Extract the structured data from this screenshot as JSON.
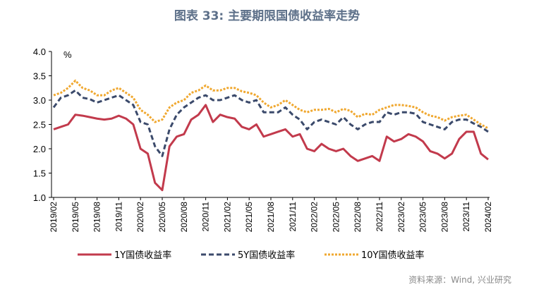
{
  "title": "图表 33: 主要期限国债收益率走势",
  "source": "资料来源：Wind, 兴业研究",
  "chart_data": {
    "type": "line",
    "ylabel": "%",
    "ylim": [
      1.0,
      4.0
    ],
    "yticks": [
      "4.0",
      "3.5",
      "3.0",
      "2.5",
      "2.0",
      "1.5",
      "1.0"
    ],
    "xticks": [
      "2019/02",
      "2019/05",
      "2019/08",
      "2019/11",
      "2020/02",
      "2020/05",
      "2020/08",
      "2020/11",
      "2021/02",
      "2021/05",
      "2021/08",
      "2021/11",
      "2022/02",
      "2022/05",
      "2022/08",
      "2022/11",
      "2023/02",
      "2023/05",
      "2023/08",
      "2023/11",
      "2024/02"
    ],
    "x_start": "2019/02",
    "x_end": "2024/02",
    "grid": false,
    "legend": "bottom",
    "series": [
      {
        "name": "1Y国债收益率",
        "color": "#c23a4c",
        "dash": "solid",
        "values": [
          2.4,
          2.45,
          2.5,
          2.7,
          2.68,
          2.65,
          2.62,
          2.6,
          2.62,
          2.68,
          2.62,
          2.5,
          2.0,
          1.9,
          1.3,
          1.15,
          2.05,
          2.25,
          2.3,
          2.6,
          2.7,
          2.9,
          2.55,
          2.7,
          2.65,
          2.62,
          2.45,
          2.4,
          2.5,
          2.25,
          2.3,
          2.35,
          2.4,
          2.25,
          2.3,
          2.0,
          1.95,
          2.1,
          2.0,
          1.95,
          2.0,
          1.85,
          1.75,
          1.8,
          1.85,
          1.75,
          2.25,
          2.15,
          2.2,
          2.3,
          2.25,
          2.15,
          1.95,
          1.9,
          1.8,
          1.9,
          2.2,
          2.35,
          2.35,
          1.9,
          1.78
        ]
      },
      {
        "name": "5Y国债收益率",
        "color": "#3b4a6b",
        "dash": "dash",
        "values": [
          2.85,
          3.05,
          3.1,
          3.2,
          3.05,
          3.02,
          2.95,
          3.0,
          3.05,
          3.1,
          3.0,
          2.9,
          2.55,
          2.5,
          2.05,
          1.85,
          2.4,
          2.7,
          2.85,
          2.95,
          3.05,
          3.1,
          3.0,
          3.0,
          3.05,
          3.1,
          3.0,
          2.95,
          3.0,
          2.75,
          2.75,
          2.75,
          2.85,
          2.7,
          2.6,
          2.4,
          2.55,
          2.6,
          2.55,
          2.5,
          2.65,
          2.5,
          2.4,
          2.5,
          2.55,
          2.55,
          2.75,
          2.7,
          2.75,
          2.75,
          2.72,
          2.55,
          2.5,
          2.45,
          2.4,
          2.55,
          2.6,
          2.6,
          2.52,
          2.45,
          2.35
        ]
      },
      {
        "name": "10Y国债收益率",
        "color": "#f0a830",
        "dash": "dot",
        "values": [
          3.1,
          3.15,
          3.25,
          3.4,
          3.25,
          3.2,
          3.1,
          3.1,
          3.2,
          3.25,
          3.15,
          3.05,
          2.8,
          2.7,
          2.55,
          2.6,
          2.85,
          2.95,
          3.0,
          3.15,
          3.2,
          3.3,
          3.2,
          3.2,
          3.25,
          3.25,
          3.18,
          3.15,
          3.1,
          2.95,
          2.85,
          2.9,
          3.0,
          2.9,
          2.8,
          2.75,
          2.8,
          2.8,
          2.82,
          2.75,
          2.82,
          2.78,
          2.65,
          2.72,
          2.7,
          2.8,
          2.85,
          2.9,
          2.9,
          2.88,
          2.85,
          2.75,
          2.68,
          2.65,
          2.58,
          2.65,
          2.68,
          2.7,
          2.6,
          2.5,
          2.42
        ]
      }
    ]
  }
}
